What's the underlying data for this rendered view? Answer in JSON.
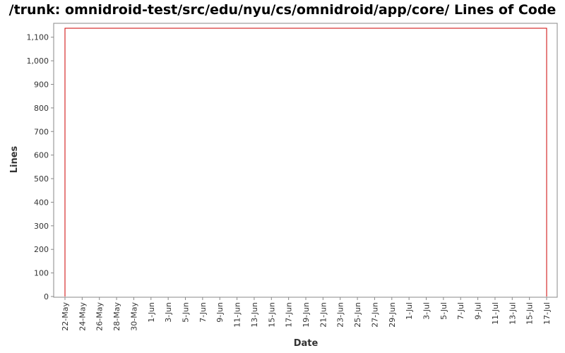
{
  "chart_data": {
    "type": "line",
    "title": "/trunk: omnidroid-test/src/edu/nyu/cs/omnidroid/app/core/ Lines of Code",
    "xlabel": "Date",
    "ylabel": "Lines",
    "ylim": [
      0,
      1150
    ],
    "y_ticks": [
      0,
      100,
      200,
      300,
      400,
      500,
      600,
      700,
      800,
      900,
      1000,
      1100
    ],
    "y_tick_labels": [
      "0",
      "100",
      "200",
      "300",
      "400",
      "500",
      "600",
      "700",
      "800",
      "900",
      "1,000",
      "1,100"
    ],
    "x_range_days": [
      0,
      57
    ],
    "x_ticks": [
      {
        "label": "22-May",
        "day": 0
      },
      {
        "label": "24-May",
        "day": 2
      },
      {
        "label": "26-May",
        "day": 4
      },
      {
        "label": "28-May",
        "day": 6
      },
      {
        "label": "30-May",
        "day": 8
      },
      {
        "label": "1-Jun",
        "day": 10
      },
      {
        "label": "3-Jun",
        "day": 12
      },
      {
        "label": "5-Jun",
        "day": 14
      },
      {
        "label": "7-Jun",
        "day": 16
      },
      {
        "label": "9-Jun",
        "day": 18
      },
      {
        "label": "11-Jun",
        "day": 20
      },
      {
        "label": "13-Jun",
        "day": 22
      },
      {
        "label": "15-Jun",
        "day": 24
      },
      {
        "label": "17-Jun",
        "day": 26
      },
      {
        "label": "19-Jun",
        "day": 28
      },
      {
        "label": "21-Jun",
        "day": 30
      },
      {
        "label": "23-Jun",
        "day": 32
      },
      {
        "label": "25-Jun",
        "day": 34
      },
      {
        "label": "27-Jun",
        "day": 36
      },
      {
        "label": "29-Jun",
        "day": 38
      },
      {
        "label": "1-Jul",
        "day": 40
      },
      {
        "label": "3-Jul",
        "day": 42
      },
      {
        "label": "5-Jul",
        "day": 44
      },
      {
        "label": "7-Jul",
        "day": 46
      },
      {
        "label": "9-Jul",
        "day": 48
      },
      {
        "label": "11-Jul",
        "day": 50
      },
      {
        "label": "13-Jul",
        "day": 52
      },
      {
        "label": "15-Jul",
        "day": 54
      },
      {
        "label": "17-Jul",
        "day": 56
      }
    ],
    "series": [
      {
        "name": "Lines of Code",
        "color": "#cc0000",
        "points": [
          {
            "day": 0,
            "value": 0
          },
          {
            "day": 0,
            "value": 1138
          },
          {
            "day": 56,
            "value": 1138
          },
          {
            "day": 56,
            "value": 0
          }
        ]
      }
    ]
  }
}
